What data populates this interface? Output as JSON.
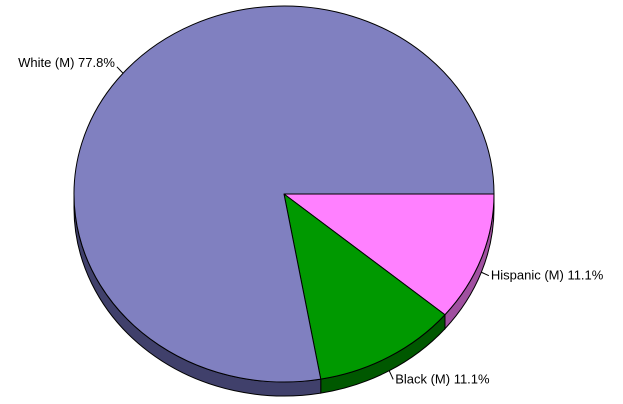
{
  "chart_data": {
    "type": "pie",
    "style": "3d",
    "title": "",
    "start_angle_deg": 0,
    "direction": "clockwise",
    "slices": [
      {
        "label": "Hispanic (M) 11.1%",
        "value": 11.1,
        "color": "#ff80ff",
        "side_color": "#a050a0"
      },
      {
        "label": "Black (M) 11.1%",
        "value": 11.1,
        "color": "#009900",
        "side_color": "#005800"
      },
      {
        "label": "White (M) 77.8%",
        "value": 77.8,
        "color": "#8080c0",
        "side_color": "#40406b"
      }
    ]
  }
}
